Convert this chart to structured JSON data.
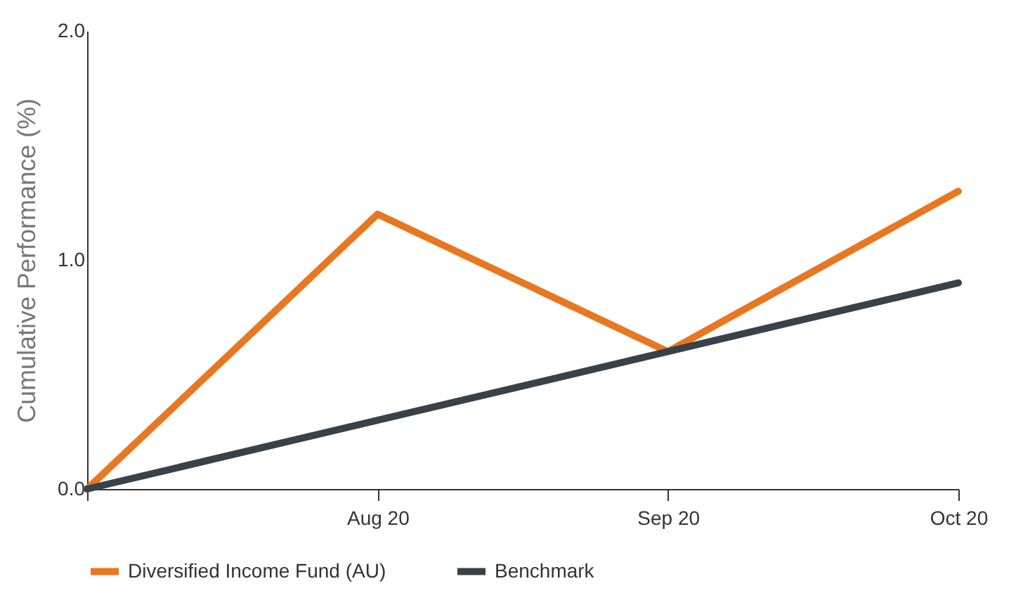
{
  "chart_data": {
    "type": "line",
    "ylabel": "Cumulative Performance (%)",
    "categories": [
      null,
      "Aug 20",
      "Sep 20",
      "Oct 20"
    ],
    "series": [
      {
        "name": "Diversified Income Fund (AU)",
        "color": "#e87722",
        "values": [
          0,
          1.2,
          0.6,
          1.3
        ]
      },
      {
        "name": "Benchmark",
        "color": "#37424a",
        "values": [
          0,
          0.3,
          0.6,
          0.9
        ]
      }
    ],
    "ylim": [
      0,
      2
    ],
    "yticks": [
      {
        "value": 0,
        "label": "0.0"
      },
      {
        "value": 1,
        "label": "1.0"
      },
      {
        "value": 2,
        "label": "2.0"
      }
    ],
    "grid": false,
    "legend": "bottom"
  }
}
